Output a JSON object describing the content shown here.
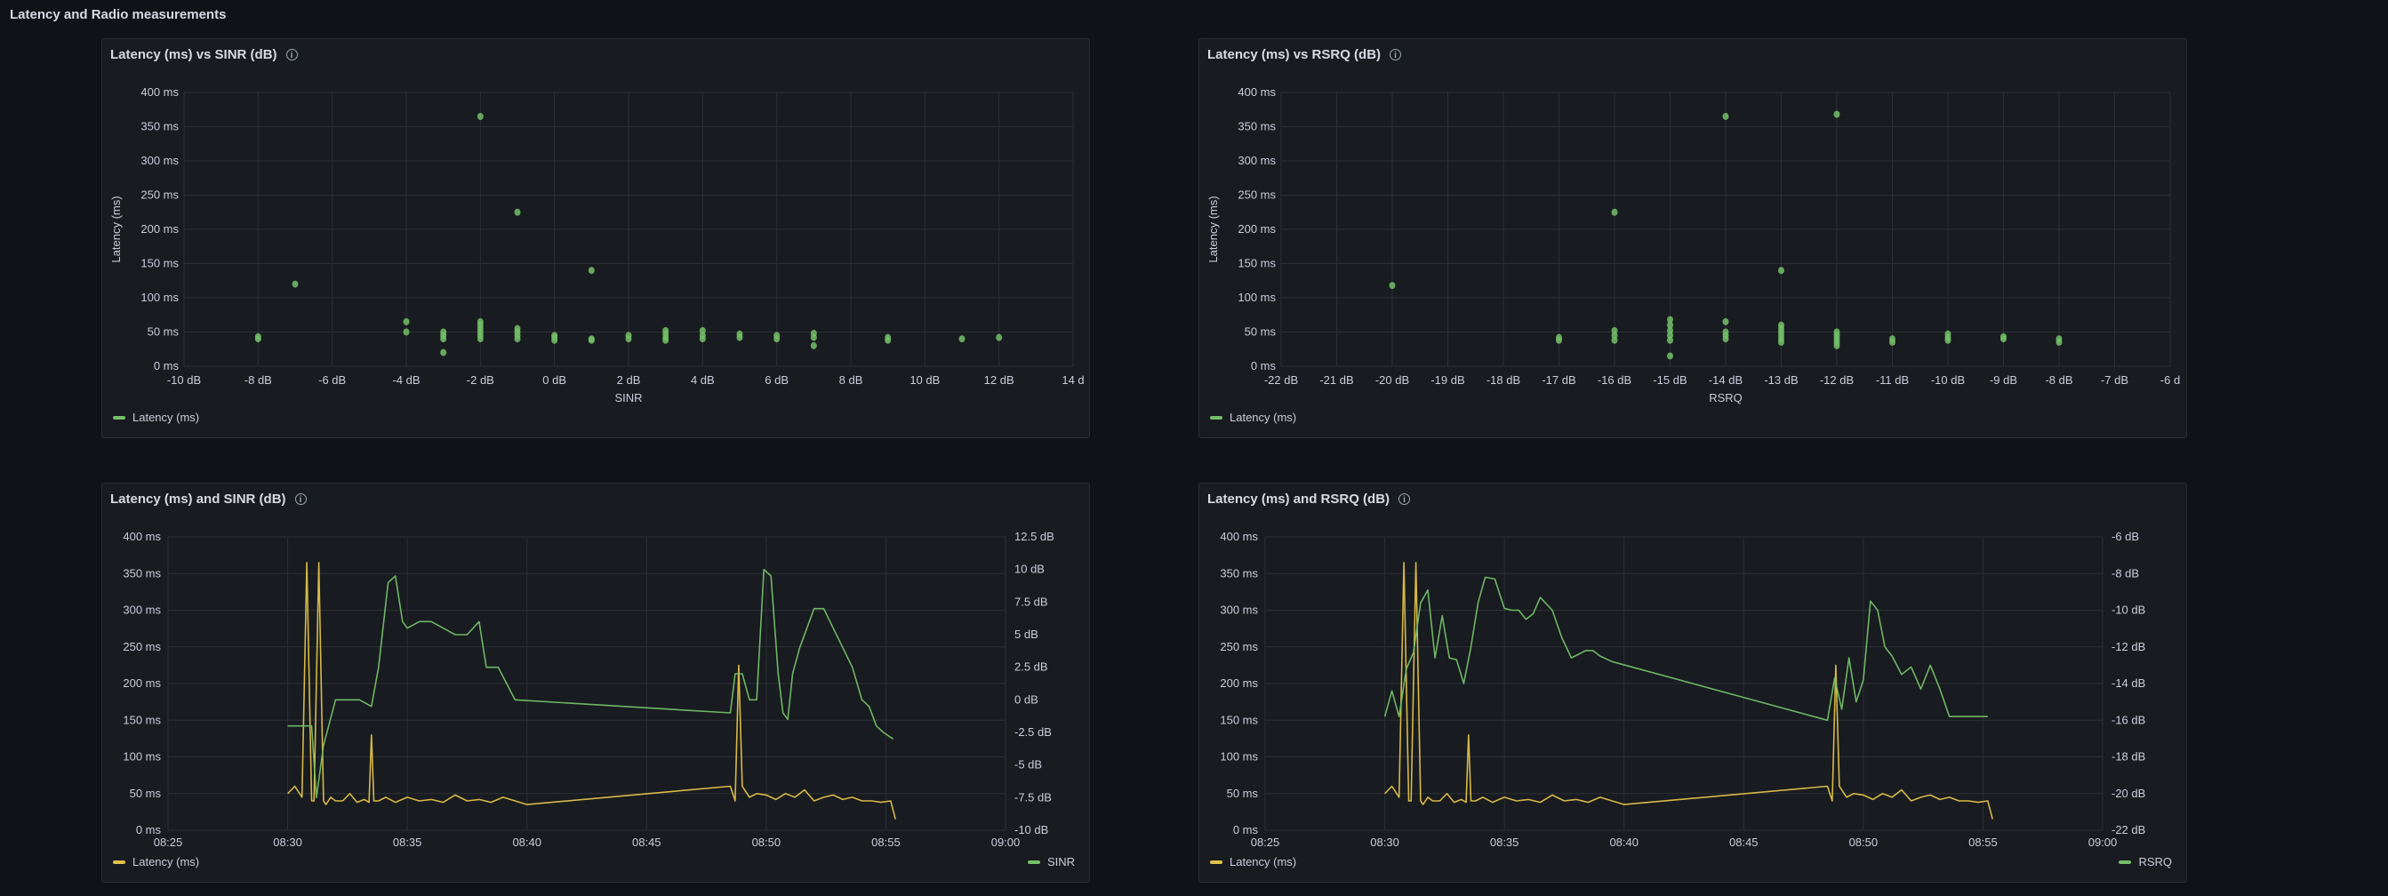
{
  "row_title": "Latency and Radio measurements",
  "colors": {
    "latency": "#73bf69",
    "latency_line": "#e0c24a",
    "radio": "#73bf69"
  },
  "panels": [
    {
      "title": "Latency (ms) vs SINR (dB)",
      "legend": "Latency (ms)"
    },
    {
      "title": "Latency (ms) vs RSRQ (dB)",
      "legend": "Latency (ms)"
    },
    {
      "title": "Latency (ms) and SINR (dB)",
      "legend_left": "Latency (ms)",
      "legend_right": "SINR"
    },
    {
      "title": "Latency (ms) and RSRQ (dB)",
      "legend_left": "Latency (ms)",
      "legend_right": "RSRQ"
    }
  ],
  "chart_data": [
    {
      "type": "scatter",
      "title": "Latency (ms) vs SINR (dB)",
      "xlabel": "SINR",
      "ylabel": "Latency (ms)",
      "xlim": [
        -10,
        14
      ],
      "ylim": [
        0,
        400
      ],
      "xticks": [
        "-10 dB",
        "-8 dB",
        "-6 dB",
        "-4 dB",
        "-2 dB",
        "0 dB",
        "2 dB",
        "4 dB",
        "6 dB",
        "8 dB",
        "10 dB",
        "12 dB",
        "14 d"
      ],
      "yticks": [
        "0 ms",
        "50 ms",
        "100 ms",
        "150 ms",
        "200 ms",
        "250 ms",
        "300 ms",
        "350 ms",
        "400 ms"
      ],
      "series": [
        {
          "name": "Latency (ms)",
          "points": [
            [
              -8,
              40
            ],
            [
              -8,
              43
            ],
            [
              -7,
              120
            ],
            [
              -4,
              50
            ],
            [
              -4,
              65
            ],
            [
              -3,
              20
            ],
            [
              -3,
              40
            ],
            [
              -3,
              45
            ],
            [
              -3,
              50
            ],
            [
              -2,
              365
            ],
            [
              -2,
              40
            ],
            [
              -2,
              45
            ],
            [
              -2,
              50
            ],
            [
              -2,
              55
            ],
            [
              -2,
              60
            ],
            [
              -2,
              65
            ],
            [
              -1,
              225
            ],
            [
              -1,
              40
            ],
            [
              -1,
              45
            ],
            [
              -1,
              50
            ],
            [
              -1,
              55
            ],
            [
              0,
              38
            ],
            [
              0,
              42
            ],
            [
              0,
              45
            ],
            [
              1,
              140
            ],
            [
              1,
              38
            ],
            [
              1,
              40
            ],
            [
              2,
              40
            ],
            [
              2,
              45
            ],
            [
              3,
              38
            ],
            [
              3,
              42
            ],
            [
              3,
              47
            ],
            [
              3,
              52
            ],
            [
              4,
              40
            ],
            [
              4,
              45
            ],
            [
              4,
              52
            ],
            [
              5,
              42
            ],
            [
              5,
              47
            ],
            [
              6,
              40
            ],
            [
              6,
              45
            ],
            [
              7,
              30
            ],
            [
              7,
              42
            ],
            [
              7,
              48
            ],
            [
              9,
              38
            ],
            [
              9,
              42
            ],
            [
              11,
              40
            ],
            [
              12,
              42
            ]
          ]
        }
      ]
    },
    {
      "type": "scatter",
      "title": "Latency (ms) vs RSRQ (dB)",
      "xlabel": "RSRQ",
      "ylabel": "Latency (ms)",
      "xlim": [
        -22,
        -6
      ],
      "ylim": [
        0,
        400
      ],
      "xticks": [
        "-22 dB",
        "-21 dB",
        "-20 dB",
        "-19 dB",
        "-18 dB",
        "-17 dB",
        "-16 dB",
        "-15 dB",
        "-14 dB",
        "-13 dB",
        "-12 dB",
        "-11 dB",
        "-10 dB",
        "-9 dB",
        "-8 dB",
        "-7 dB",
        "-6 d"
      ],
      "yticks": [
        "0 ms",
        "50 ms",
        "100 ms",
        "150 ms",
        "200 ms",
        "250 ms",
        "300 ms",
        "350 ms",
        "400 ms"
      ],
      "series": [
        {
          "name": "Latency (ms)",
          "points": [
            [
              -20,
              118
            ],
            [
              -17,
              38
            ],
            [
              -17,
              42
            ],
            [
              -16,
              225
            ],
            [
              -16,
              38
            ],
            [
              -16,
              45
            ],
            [
              -16,
              52
            ],
            [
              -15,
              15
            ],
            [
              -15,
              38
            ],
            [
              -15,
              45
            ],
            [
              -15,
              52
            ],
            [
              -15,
              60
            ],
            [
              -15,
              68
            ],
            [
              -14,
              365
            ],
            [
              -14,
              40
            ],
            [
              -14,
              45
            ],
            [
              -14,
              50
            ],
            [
              -14,
              65
            ],
            [
              -13,
              140
            ],
            [
              -13,
              35
            ],
            [
              -13,
              40
            ],
            [
              -13,
              45
            ],
            [
              -13,
              50
            ],
            [
              -13,
              55
            ],
            [
              -13,
              60
            ],
            [
              -12,
              368
            ],
            [
              -12,
              30
            ],
            [
              -12,
              35
            ],
            [
              -12,
              40
            ],
            [
              -12,
              45
            ],
            [
              -12,
              50
            ],
            [
              -11,
              35
            ],
            [
              -11,
              40
            ],
            [
              -10,
              38
            ],
            [
              -10,
              42
            ],
            [
              -10,
              47
            ],
            [
              -9,
              40
            ],
            [
              -9,
              43
            ],
            [
              -8,
              35
            ],
            [
              -8,
              40
            ]
          ]
        }
      ]
    },
    {
      "type": "line",
      "title": "Latency (ms) and SINR (dB)",
      "xticks": [
        "08:25",
        "08:30",
        "08:35",
        "08:40",
        "08:45",
        "08:50",
        "08:55",
        "09:00"
      ],
      "xlim_min": [
        25,
        60
      ],
      "ylim_left": [
        0,
        400
      ],
      "ylim_right": [
        -10,
        12.5
      ],
      "yticks_left": [
        "0 ms",
        "50 ms",
        "100 ms",
        "150 ms",
        "200 ms",
        "250 ms",
        "300 ms",
        "350 ms",
        "400 ms"
      ],
      "yticks_right": [
        "-10 dB",
        "-7.5 dB",
        "-5 dB",
        "-2.5 dB",
        "0 dB",
        "2.5 dB",
        "5 dB",
        "7.5 dB",
        "10 dB",
        "12.5 dB"
      ],
      "series": [
        {
          "name": "Latency (ms)",
          "axis": "left",
          "x_min": [
            30.0,
            30.3,
            30.6,
            30.8,
            31.0,
            31.1,
            31.3,
            31.5,
            31.6,
            31.8,
            32.0,
            32.3,
            32.6,
            32.9,
            33.2,
            33.4,
            33.5,
            33.6,
            33.8,
            34.1,
            34.5,
            35.0,
            35.5,
            36.0,
            36.5,
            37.0,
            37.5,
            38.0,
            38.5,
            39.0,
            39.5,
            40.0,
            48.5,
            48.7,
            48.85,
            49.0,
            49.3,
            49.6,
            50.0,
            50.4,
            50.8,
            51.2,
            51.6,
            52.0,
            52.4,
            52.8,
            53.2,
            53.6,
            54.0,
            54.4,
            54.8,
            55.2,
            55.4
          ],
          "values": [
            50,
            60,
            45,
            365,
            40,
            40,
            365,
            40,
            35,
            45,
            40,
            40,
            50,
            38,
            42,
            38,
            130,
            40,
            40,
            45,
            38,
            45,
            40,
            42,
            38,
            48,
            40,
            42,
            38,
            45,
            40,
            35,
            60,
            40,
            225,
            60,
            45,
            50,
            48,
            42,
            50,
            45,
            55,
            40,
            45,
            48,
            42,
            45,
            40,
            40,
            38,
            40,
            15
          ]
        },
        {
          "name": "SINR",
          "axis": "right",
          "x_min": [
            30.0,
            30.8,
            31.0,
            31.2,
            31.5,
            32.0,
            32.5,
            33.0,
            33.5,
            33.8,
            34.2,
            34.5,
            34.8,
            35.0,
            35.5,
            36.0,
            37.0,
            37.5,
            38.0,
            38.3,
            38.8,
            39.5,
            48.5,
            48.7,
            49.0,
            49.3,
            49.6,
            49.9,
            50.2,
            50.5,
            50.7,
            50.9,
            51.1,
            51.4,
            51.7,
            52.0,
            52.4,
            52.8,
            53.2,
            53.6,
            54.0,
            54.3,
            54.6,
            54.9,
            55.3
          ],
          "values": [
            -2,
            -2,
            -2,
            -7.5,
            -3.5,
            0,
            0,
            0,
            -0.5,
            2.5,
            9,
            9.5,
            6,
            5.5,
            6,
            6,
            5,
            5,
            6,
            2.5,
            2.5,
            0,
            -1,
            2,
            2,
            0,
            0,
            10,
            9.5,
            2,
            -1,
            -1.5,
            2,
            4,
            5.5,
            7,
            7,
            5.5,
            4,
            2.5,
            0,
            -0.5,
            -2,
            -2.5,
            -3
          ]
        }
      ]
    },
    {
      "type": "line",
      "title": "Latency (ms) and RSRQ (dB)",
      "xticks": [
        "08:25",
        "08:30",
        "08:35",
        "08:40",
        "08:45",
        "08:50",
        "08:55",
        "09:00"
      ],
      "xlim_min": [
        25,
        60
      ],
      "ylim_left": [
        0,
        400
      ],
      "ylim_right": [
        -22,
        -6
      ],
      "yticks_left": [
        "0 ms",
        "50 ms",
        "100 ms",
        "150 ms",
        "200 ms",
        "250 ms",
        "300 ms",
        "350 ms",
        "400 ms"
      ],
      "yticks_right": [
        "-22 dB",
        "-20 dB",
        "-18 dB",
        "-16 dB",
        "-14 dB",
        "-12 dB",
        "-10 dB",
        "-8 dB",
        "-6 dB"
      ],
      "series": [
        {
          "name": "Latency (ms)",
          "axis": "left",
          "x_min": [
            30.0,
            30.3,
            30.6,
            30.8,
            31.0,
            31.1,
            31.3,
            31.5,
            31.6,
            31.8,
            32.0,
            32.3,
            32.6,
            32.9,
            33.2,
            33.4,
            33.5,
            33.6,
            33.8,
            34.1,
            34.5,
            35.0,
            35.5,
            36.0,
            36.5,
            37.0,
            37.5,
            38.0,
            38.5,
            39.0,
            39.5,
            40.0,
            48.5,
            48.7,
            48.85,
            49.0,
            49.3,
            49.6,
            50.0,
            50.4,
            50.8,
            51.2,
            51.6,
            52.0,
            52.4,
            52.8,
            53.2,
            53.6,
            54.0,
            54.4,
            54.8,
            55.2,
            55.4
          ],
          "values": [
            50,
            60,
            45,
            365,
            40,
            40,
            365,
            40,
            35,
            45,
            40,
            40,
            50,
            38,
            42,
            38,
            130,
            40,
            40,
            45,
            38,
            45,
            40,
            42,
            38,
            48,
            40,
            42,
            38,
            45,
            40,
            35,
            60,
            40,
            225,
            60,
            45,
            50,
            48,
            42,
            50,
            45,
            55,
            40,
            45,
            48,
            42,
            45,
            40,
            40,
            38,
            40,
            15
          ]
        },
        {
          "name": "RSRQ",
          "axis": "right",
          "x_min": [
            30.0,
            30.3,
            30.6,
            30.9,
            31.2,
            31.5,
            31.8,
            32.1,
            32.4,
            32.7,
            33.0,
            33.3,
            33.6,
            33.9,
            34.2,
            34.6,
            35.0,
            35.3,
            35.6,
            35.9,
            36.2,
            36.5,
            37.0,
            37.4,
            37.8,
            38.1,
            38.4,
            38.7,
            39.0,
            39.5,
            48.5,
            48.8,
            49.1,
            49.4,
            49.7,
            50.0,
            50.3,
            50.6,
            50.9,
            51.2,
            51.6,
            52.0,
            52.4,
            52.8,
            53.2,
            53.6,
            54.0,
            54.4,
            54.8,
            55.2
          ],
          "values": [
            -15.8,
            -14.4,
            -15.8,
            -13.2,
            -12.3,
            -9.6,
            -8.9,
            -12.6,
            -10.3,
            -12.6,
            -12.7,
            -14,
            -12,
            -9.6,
            -8.2,
            -8.3,
            -9.9,
            -10.0,
            -10.0,
            -10.5,
            -10.2,
            -9.3,
            -10.0,
            -11.5,
            -12.6,
            -12.4,
            -12.2,
            -12.2,
            -12.5,
            -12.8,
            -16,
            -13.7,
            -15.4,
            -12.6,
            -15,
            -13.8,
            -9.5,
            -10,
            -12,
            -12.5,
            -13.5,
            -13.1,
            -14.3,
            -13.0,
            -14.3,
            -15.8,
            -15.8,
            -15.8,
            -15.8,
            -15.8
          ]
        }
      ]
    }
  ]
}
